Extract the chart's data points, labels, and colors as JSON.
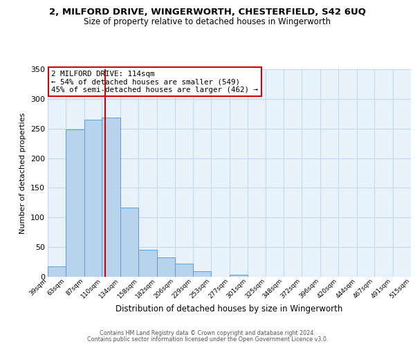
{
  "title1": "2, MILFORD DRIVE, WINGERWORTH, CHESTERFIELD, S42 6UQ",
  "title2": "Size of property relative to detached houses in Wingerworth",
  "xlabel": "Distribution of detached houses by size in Wingerworth",
  "ylabel": "Number of detached properties",
  "bin_edges": [
    39,
    63,
    87,
    110,
    134,
    158,
    182,
    206,
    229,
    253,
    277,
    301,
    325,
    348,
    372,
    396,
    420,
    444,
    467,
    491,
    515
  ],
  "bar_heights": [
    18,
    248,
    265,
    268,
    117,
    45,
    33,
    22,
    9,
    0,
    3,
    0,
    0,
    0,
    0,
    0,
    0,
    0,
    0,
    0,
    2
  ],
  "bar_color": "#b8d4ed",
  "bar_edge_color": "#6699cc",
  "grid_color": "#c5d9ee",
  "background_color": "#e8f2fb",
  "red_line_x": 114,
  "red_line_color": "#cc0000",
  "ylim": [
    0,
    350
  ],
  "yticks": [
    0,
    50,
    100,
    150,
    200,
    250,
    300,
    350
  ],
  "annotation_title": "2 MILFORD DRIVE: 114sqm",
  "annotation_line1": "← 54% of detached houses are smaller (549)",
  "annotation_line2": "45% of semi-detached houses are larger (462) →",
  "annotation_box_edge": "#cc0000",
  "footer1": "Contains HM Land Registry data © Crown copyright and database right 2024.",
  "footer2": "Contains public sector information licensed under the Open Government Licence v3.0."
}
